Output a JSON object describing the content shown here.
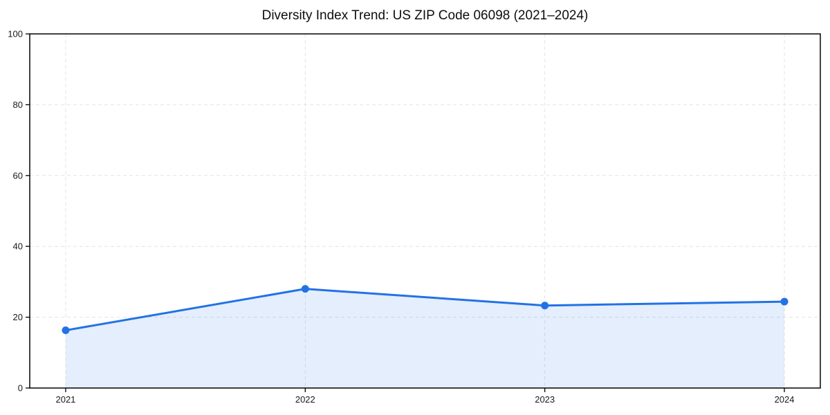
{
  "chart_data": {
    "type": "line",
    "title": "Diversity Index Trend: US ZIP Code 06098 (2021–2024)",
    "x": [
      "2021",
      "2022",
      "2023",
      "2024"
    ],
    "series": [
      {
        "name": "Diversity Index",
        "values": [
          16.3,
          28.0,
          23.3,
          24.4
        ]
      }
    ],
    "ylim": [
      0,
      100
    ],
    "yticks": [
      0,
      20,
      40,
      60,
      80,
      100
    ],
    "xlabel": "",
    "ylabel": "",
    "legend": "none",
    "grid": {
      "show": true,
      "style": "dashed",
      "axes": "both",
      "color": "#e4e4e4"
    },
    "line_color": "#2272e5",
    "marker_color": "#2272e5",
    "fill_color": "rgba(34,114,229,0.12)",
    "marker": "circle",
    "area_fill": true,
    "axis_color": "#000000"
  }
}
